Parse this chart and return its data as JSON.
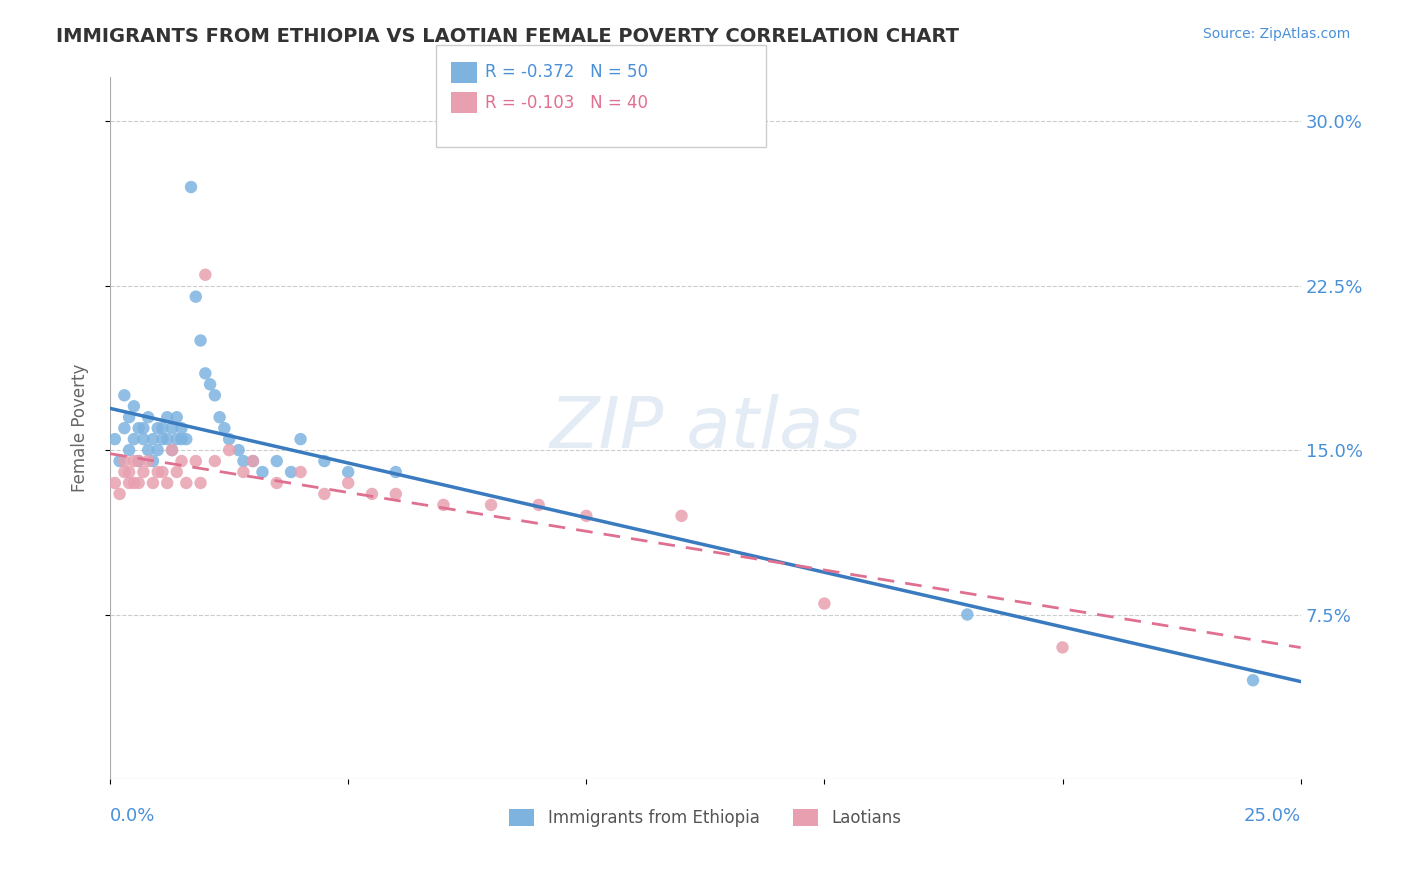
{
  "title": "IMMIGRANTS FROM ETHIOPIA VS LAOTIAN FEMALE POVERTY CORRELATION CHART",
  "source": "Source: ZipAtlas.com",
  "ylabel": "Female Poverty",
  "yticks": [
    0.075,
    0.15,
    0.225,
    0.3
  ],
  "ytick_labels": [
    "7.5%",
    "15.0%",
    "22.5%",
    "30.0%"
  ],
  "xlim": [
    0.0,
    0.25
  ],
  "ylim": [
    0.0,
    0.32
  ],
  "series1": {
    "label": "Immigrants from Ethiopia",
    "R": -0.372,
    "N": 50,
    "color": "#7eb3e0",
    "x": [
      0.001,
      0.002,
      0.003,
      0.003,
      0.004,
      0.004,
      0.005,
      0.005,
      0.006,
      0.006,
      0.007,
      0.007,
      0.008,
      0.008,
      0.009,
      0.009,
      0.01,
      0.01,
      0.011,
      0.011,
      0.012,
      0.012,
      0.013,
      0.013,
      0.014,
      0.014,
      0.015,
      0.015,
      0.016,
      0.017,
      0.018,
      0.019,
      0.02,
      0.021,
      0.022,
      0.023,
      0.024,
      0.025,
      0.027,
      0.028,
      0.03,
      0.032,
      0.035,
      0.038,
      0.04,
      0.045,
      0.05,
      0.06,
      0.18,
      0.24
    ],
    "y": [
      0.155,
      0.145,
      0.16,
      0.175,
      0.15,
      0.165,
      0.155,
      0.17,
      0.145,
      0.16,
      0.155,
      0.16,
      0.15,
      0.165,
      0.145,
      0.155,
      0.15,
      0.16,
      0.155,
      0.16,
      0.155,
      0.165,
      0.15,
      0.16,
      0.155,
      0.165,
      0.155,
      0.16,
      0.155,
      0.27,
      0.22,
      0.2,
      0.185,
      0.18,
      0.175,
      0.165,
      0.16,
      0.155,
      0.15,
      0.145,
      0.145,
      0.14,
      0.145,
      0.14,
      0.155,
      0.145,
      0.14,
      0.14,
      0.075,
      0.045
    ]
  },
  "series2": {
    "label": "Laotians",
    "R": -0.103,
    "N": 40,
    "color": "#e8a0b0",
    "x": [
      0.001,
      0.002,
      0.003,
      0.003,
      0.004,
      0.004,
      0.005,
      0.005,
      0.006,
      0.006,
      0.007,
      0.008,
      0.009,
      0.01,
      0.011,
      0.012,
      0.013,
      0.014,
      0.015,
      0.016,
      0.018,
      0.019,
      0.02,
      0.022,
      0.025,
      0.028,
      0.03,
      0.035,
      0.04,
      0.045,
      0.05,
      0.055,
      0.06,
      0.07,
      0.08,
      0.09,
      0.1,
      0.12,
      0.15,
      0.2
    ],
    "y": [
      0.135,
      0.13,
      0.14,
      0.145,
      0.135,
      0.14,
      0.135,
      0.145,
      0.135,
      0.145,
      0.14,
      0.145,
      0.135,
      0.14,
      0.14,
      0.135,
      0.15,
      0.14,
      0.145,
      0.135,
      0.145,
      0.135,
      0.23,
      0.145,
      0.15,
      0.14,
      0.145,
      0.135,
      0.14,
      0.13,
      0.135,
      0.13,
      0.13,
      0.125,
      0.125,
      0.125,
      0.12,
      0.12,
      0.08,
      0.06
    ]
  },
  "bg_color": "#ffffff",
  "grid_color": "#cccccc",
  "title_color": "#333333",
  "axis_label_color": "#4a90d9",
  "line1_color": "#3a7abf",
  "line2_color": "#e07090",
  "ylabel_color": "#666666"
}
